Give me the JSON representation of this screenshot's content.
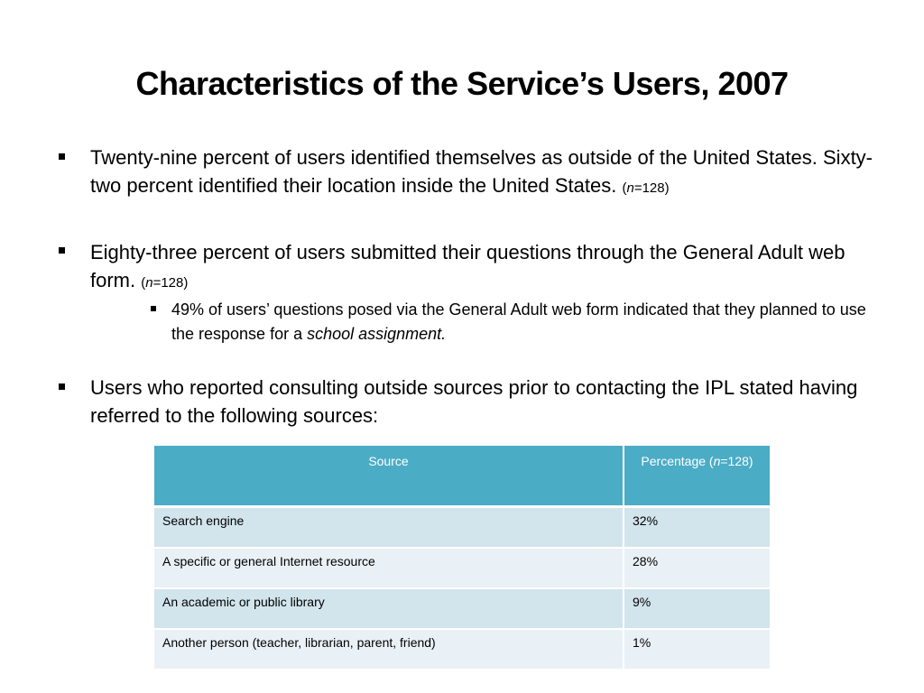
{
  "title": "Characteristics of the Service’s Users, 2007",
  "bullets": [
    {
      "text": "Twenty-nine percent of users identified themselves as outside of the United States.  Sixty-two percent identified their location inside the United States. ",
      "note_open": "(",
      "note_n": "n",
      "note_rest": "=128)"
    },
    {
      "text": "Eighty-three percent of users submitted their questions through the General Adult web form. ",
      "note_open": "(",
      "note_n": "n",
      "note_rest": "=128)",
      "sub": {
        "text": "49% of users’ questions posed via the General Adult web form indicated that they planned to use the response for a ",
        "emphasis": "school assignment."
      }
    },
    {
      "text": "Users who reported consulting outside sources prior to contacting the IPL stated having referred to the following sources:"
    }
  ],
  "table": {
    "header_source": "Source",
    "header_pct": "Percentage (",
    "header_n": "n",
    "header_pct_rest": "=128)",
    "rows": [
      {
        "source": "Search engine",
        "pct": "32%"
      },
      {
        "source": "A specific or general Internet resource",
        "pct": "28%"
      },
      {
        "source": "An academic or public library",
        "pct": "9%"
      },
      {
        "source": "Another person (teacher, librarian, parent, friend)",
        "pct": "1%"
      }
    ]
  },
  "colors": {
    "header_bg": "#4bacc6",
    "row_odd": "#d2e4ec",
    "row_even": "#eaf1f6"
  }
}
